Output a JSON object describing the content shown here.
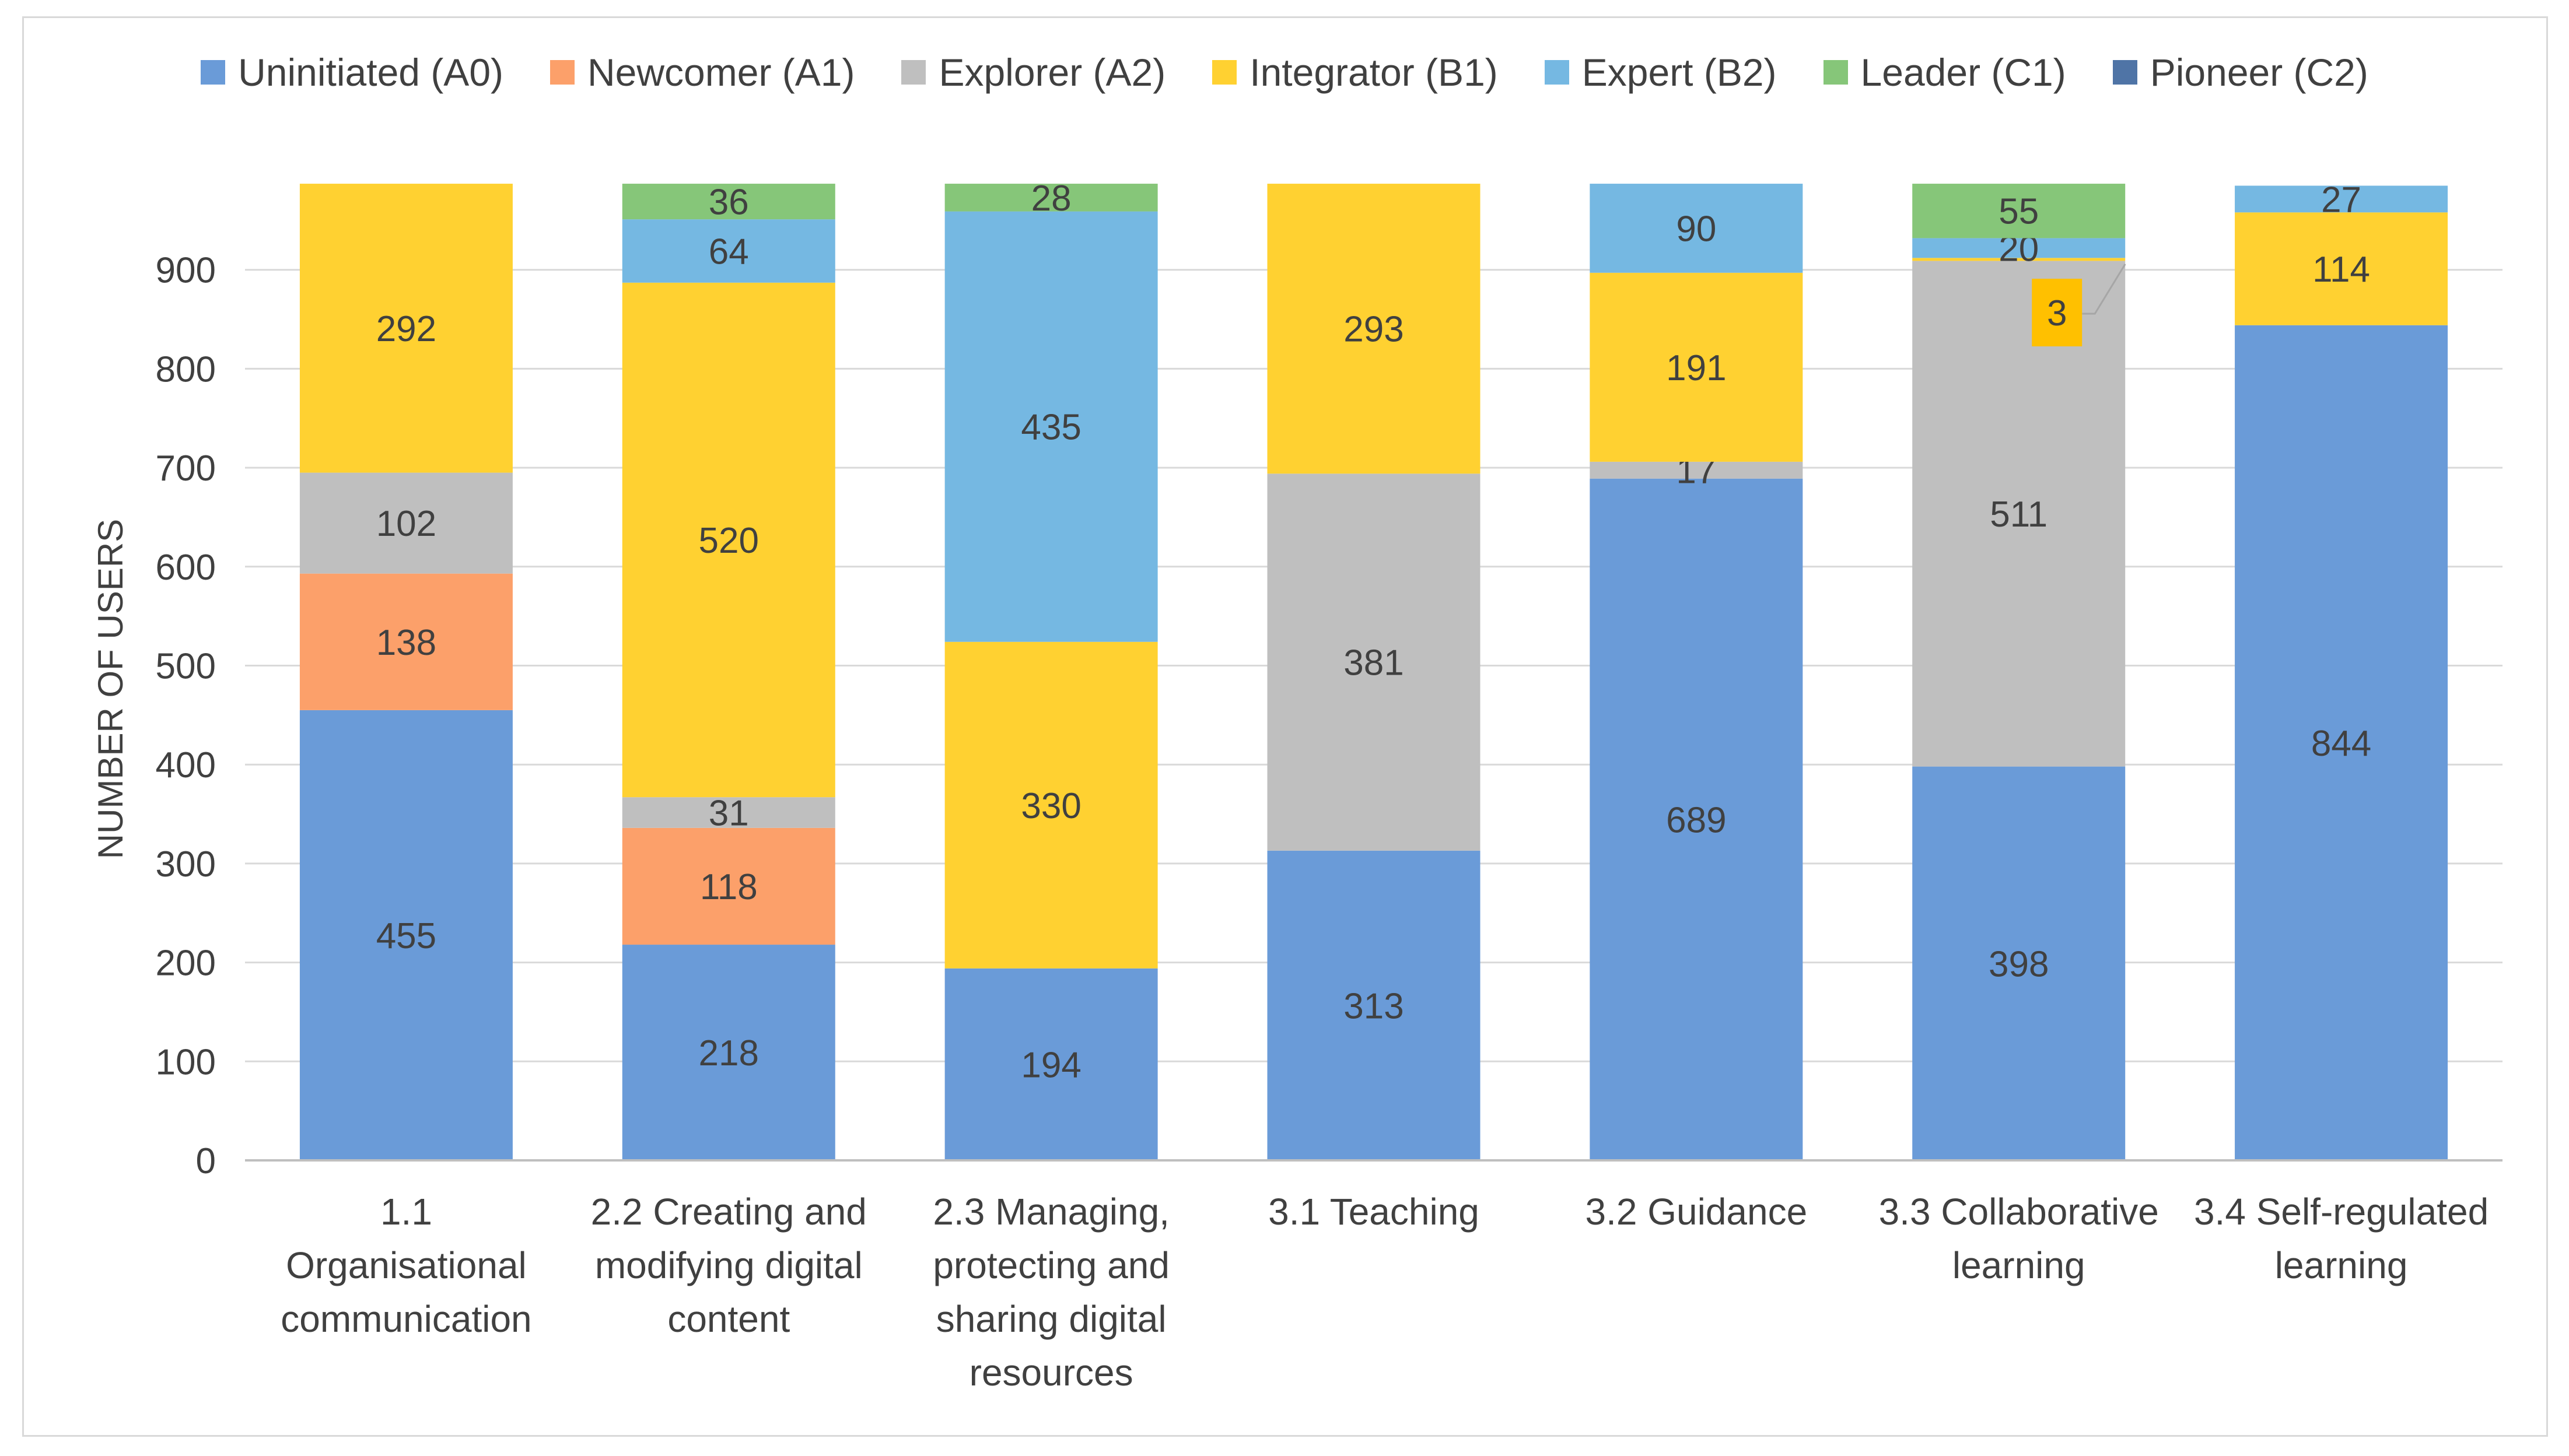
{
  "chart_data": {
    "type": "bar",
    "stacked": true,
    "title": "",
    "xlabel": "",
    "ylabel": "NUMBER OF USERS",
    "ylim": [
      0,
      1000
    ],
    "yticks": [
      0,
      100,
      200,
      300,
      400,
      500,
      600,
      700,
      800,
      900
    ],
    "legend_position": "top",
    "grid": true,
    "categories": [
      [
        "1.1",
        "Organisational",
        "communication"
      ],
      [
        "2.2 Creating and",
        "modifying digital",
        "content"
      ],
      [
        "2.3 Managing,",
        "protecting and",
        "sharing digital",
        "resources"
      ],
      [
        "3.1 Teaching"
      ],
      [
        "3.2 Guidance"
      ],
      [
        "3.3 Collaborative",
        "learning"
      ],
      [
        "3.4 Self-regulated",
        "learning"
      ]
    ],
    "series": [
      {
        "name": "Uninitiated (A0)",
        "color": "#6a9bd8",
        "values": [
          455,
          218,
          194,
          313,
          689,
          398,
          844
        ]
      },
      {
        "name": "Newcomer (A1)",
        "color": "#fca06a",
        "values": [
          138,
          118,
          0,
          0,
          0,
          0,
          0
        ]
      },
      {
        "name": "Explorer (A2)",
        "color": "#bfbfbf",
        "values": [
          102,
          31,
          0,
          381,
          17,
          511,
          0
        ]
      },
      {
        "name": "Integrator (B1)",
        "color": "#ffd131",
        "values": [
          292,
          520,
          330,
          293,
          191,
          3,
          114
        ]
      },
      {
        "name": "Expert (B2)",
        "color": "#75b8e2",
        "values": [
          0,
          64,
          435,
          0,
          90,
          20,
          27
        ]
      },
      {
        "name": "Leader (C1)",
        "color": "#86c679",
        "values": [
          0,
          36,
          28,
          0,
          0,
          55,
          0
        ]
      },
      {
        "name": "Pioneer (C2)",
        "color": "#4f74a6",
        "values": [
          0,
          0,
          0,
          0,
          0,
          0,
          0
        ]
      }
    ],
    "callout": {
      "category_index": 5,
      "series": "Integrator (B1)",
      "label": "3",
      "fill": "#ffc000"
    }
  }
}
